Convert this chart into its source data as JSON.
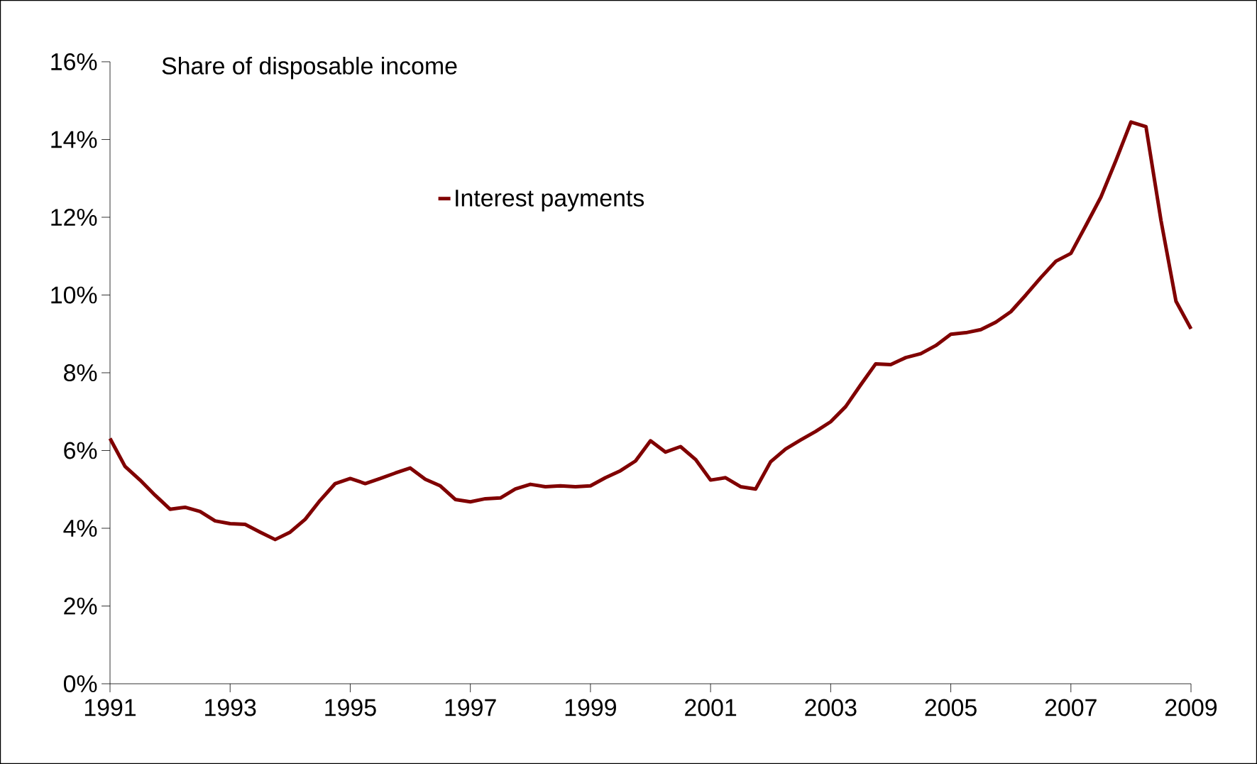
{
  "chart_data": {
    "type": "line",
    "title": "Share of disposable income",
    "x": [
      1991,
      1991.25,
      1991.5,
      1991.75,
      1992,
      1992.25,
      1992.5,
      1992.75,
      1993,
      1993.25,
      1993.5,
      1993.75,
      1994,
      1994.25,
      1994.5,
      1994.75,
      1995,
      1995.25,
      1995.5,
      1995.75,
      1996,
      1996.25,
      1996.5,
      1996.75,
      1997,
      1997.25,
      1997.5,
      1997.75,
      1998,
      1998.25,
      1998.5,
      1998.75,
      1999,
      1999.25,
      1999.5,
      1999.75,
      2000,
      2000.25,
      2000.5,
      2000.75,
      2001,
      2001.25,
      2001.5,
      2001.75,
      2002,
      2002.25,
      2002.5,
      2002.75,
      2003,
      2003.25,
      2003.5,
      2003.75,
      2004,
      2004.25,
      2004.5,
      2004.75,
      2005,
      2005.25,
      2005.5,
      2005.75,
      2006,
      2006.25,
      2006.5,
      2006.75,
      2007,
      2007.25,
      2007.5,
      2007.75,
      2008,
      2008.25,
      2008.5,
      2008.75,
      2009
    ],
    "series": [
      {
        "name": "Interest payments",
        "color": "#800000",
        "values": [
          6.31,
          5.59,
          5.24,
          4.85,
          4.49,
          4.54,
          4.43,
          4.19,
          4.12,
          4.1,
          3.9,
          3.71,
          3.9,
          4.23,
          4.72,
          5.15,
          5.28,
          5.15,
          5.28,
          5.42,
          5.55,
          5.26,
          5.09,
          4.74,
          4.68,
          4.76,
          4.78,
          5.01,
          5.13,
          5.07,
          5.09,
          5.07,
          5.09,
          5.3,
          5.48,
          5.73,
          6.25,
          5.96,
          6.1,
          5.77,
          5.24,
          5.3,
          5.07,
          5.01,
          5.71,
          6.04,
          6.27,
          6.49,
          6.74,
          7.13,
          7.69,
          8.23,
          8.21,
          8.39,
          8.49,
          8.7,
          8.99,
          9.03,
          9.11,
          9.3,
          9.57,
          10.0,
          10.45,
          10.87,
          11.07,
          11.79,
          12.52,
          13.46,
          14.45,
          14.33,
          11.92,
          9.84,
          9.13
        ]
      }
    ],
    "xlim": [
      1991,
      2009
    ],
    "xticks": [
      1991,
      1993,
      1995,
      1997,
      1999,
      2001,
      2003,
      2005,
      2007,
      2009
    ],
    "ylim": [
      0,
      16
    ],
    "yticks": [
      {
        "value": 0,
        "label": "0%"
      },
      {
        "value": 2,
        "label": "2%"
      },
      {
        "value": 4,
        "label": "4%"
      },
      {
        "value": 6,
        "label": "6%"
      },
      {
        "value": 8,
        "label": "8%"
      },
      {
        "value": 10,
        "label": "10%"
      },
      {
        "value": 12,
        "label": "12%"
      },
      {
        "value": 14,
        "label": "14%"
      },
      {
        "value": 16,
        "label": "16%"
      }
    ],
    "grid": false,
    "legend": "top",
    "marker": "none",
    "line_style": "solid"
  }
}
